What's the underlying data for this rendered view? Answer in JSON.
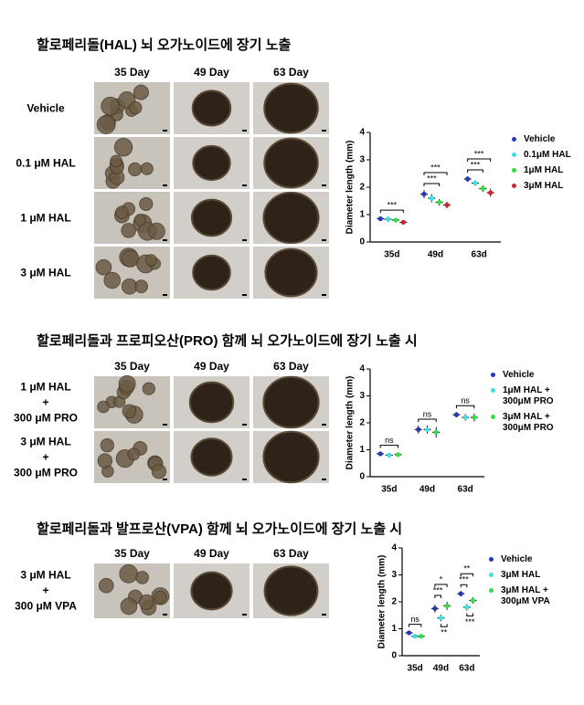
{
  "sections": [
    {
      "title": "할로페리돌(HAL) 뇌 오가노이드에 장기 노출",
      "columns": [
        "35 Day",
        "49 Day",
        "63 Day"
      ],
      "rows": [
        "Vehicle",
        "0.1 μM HAL",
        "1 μM HAL",
        "3 μM HAL"
      ]
    },
    {
      "title": "할로페리돌과 프로피오산(PRO) 함께  뇌 오가노이드에 장기 노출 시",
      "columns": [
        "35 Day",
        "49 Day",
        "63 Day"
      ],
      "rows": [
        "1 μM HAL\n+\n300 μM PRO",
        "3 μM HAL\n+\n300 μM PRO"
      ]
    },
    {
      "title": "할로페리돌과 발프로산(VPA) 함께  뇌 오가노이드에 장기 노출 시",
      "columns": [
        "35 Day",
        "49 Day",
        "63 Day"
      ],
      "rows": [
        "3 μM HAL\n+\n300 μM VPA"
      ]
    }
  ],
  "chart_data": [
    {
      "type": "dot",
      "y_label": "Diameter length (mm)",
      "categories": [
        "35d",
        "49d",
        "63d"
      ],
      "ylim": [
        0,
        4
      ],
      "yticks": [
        0,
        1,
        2,
        3,
        4
      ],
      "series": [
        {
          "name": "Vehicle",
          "color": "#2536b8",
          "values": [
            0.85,
            1.75,
            2.3
          ],
          "errors": [
            0.08,
            0.15,
            0.1
          ]
        },
        {
          "name": "0.1μM HAL",
          "color": "#3fe0e0",
          "values": [
            0.83,
            1.6,
            2.15
          ],
          "errors": [
            0.1,
            0.15,
            0.1
          ]
        },
        {
          "name": "1μM HAL",
          "color": "#33dd44",
          "values": [
            0.8,
            1.45,
            1.95
          ],
          "errors": [
            0.08,
            0.12,
            0.12
          ]
        },
        {
          "name": "3μM HAL",
          "color": "#cc2a2a",
          "values": [
            0.72,
            1.35,
            1.8
          ],
          "errors": [
            0.06,
            0.12,
            0.15
          ]
        }
      ],
      "annotations": [
        {
          "label": "***",
          "category": 0,
          "series": [
            0,
            3
          ],
          "below": false
        },
        {
          "label": "***",
          "category": 1,
          "series": [
            0,
            2
          ],
          "below": false
        },
        {
          "label": "***",
          "category": 1,
          "series": [
            0,
            3
          ],
          "below": false
        },
        {
          "label": "***",
          "category": 2,
          "series": [
            0,
            2
          ],
          "below": false
        },
        {
          "label": "***",
          "category": 2,
          "series": [
            0,
            3
          ],
          "below": false
        }
      ]
    },
    {
      "type": "dot",
      "y_label": "Diameter length (mm)",
      "categories": [
        "35d",
        "49d",
        "63d"
      ],
      "ylim": [
        0,
        4
      ],
      "yticks": [
        0,
        1,
        2,
        3,
        4
      ],
      "series": [
        {
          "name": "Vehicle",
          "color": "#2536b8",
          "values": [
            0.85,
            1.75,
            2.3
          ],
          "errors": [
            0.08,
            0.15,
            0.1
          ]
        },
        {
          "name": "1μM HAL +\n300μM PRO",
          "color": "#3fe0e0",
          "values": [
            0.8,
            1.75,
            2.2
          ],
          "errors": [
            0.08,
            0.15,
            0.12
          ]
        },
        {
          "name": "3μM HAL +\n300μM PRO",
          "color": "#33dd44",
          "values": [
            0.82,
            1.65,
            2.2
          ],
          "errors": [
            0.08,
            0.2,
            0.15
          ]
        }
      ],
      "annotations": [
        {
          "label": "ns",
          "category": 0,
          "series": [
            0,
            2
          ],
          "below": false
        },
        {
          "label": "ns",
          "category": 1,
          "series": [
            0,
            2
          ],
          "below": false
        },
        {
          "label": "ns",
          "category": 2,
          "series": [
            0,
            2
          ],
          "below": false
        }
      ]
    },
    {
      "type": "dot",
      "y_label": "Diameter length (mm)",
      "categories": [
        "35d",
        "49d",
        "63d"
      ],
      "ylim": [
        0,
        4
      ],
      "yticks": [
        0,
        1,
        2,
        3,
        4
      ],
      "series": [
        {
          "name": "Vehicle",
          "color": "#2536b8",
          "values": [
            0.85,
            1.75,
            2.3
          ],
          "errors": [
            0.08,
            0.15,
            0.1
          ]
        },
        {
          "name": "3μM HAL",
          "color": "#3fe0e0",
          "values": [
            0.72,
            1.4,
            1.8
          ],
          "errors": [
            0.06,
            0.12,
            0.12
          ]
        },
        {
          "name": "3μM HAL +\n300μM VPA",
          "color": "#33dd44",
          "values": [
            0.72,
            1.85,
            2.05
          ],
          "errors": [
            0.06,
            0.15,
            0.12
          ]
        }
      ],
      "annotations": [
        {
          "label": "ns",
          "category": 0,
          "series": [
            0,
            2
          ],
          "below": false
        },
        {
          "label": "***",
          "category": 1,
          "series": [
            0,
            1
          ],
          "below": false
        },
        {
          "label": "*",
          "category": 1,
          "series": [
            0,
            2
          ],
          "below": false
        },
        {
          "label": "**",
          "category": 1,
          "series": [
            1,
            2
          ],
          "below": true
        },
        {
          "label": "***",
          "category": 2,
          "series": [
            0,
            1
          ],
          "below": false
        },
        {
          "label": "**",
          "category": 2,
          "series": [
            0,
            2
          ],
          "below": false
        },
        {
          "label": "***",
          "category": 2,
          "series": [
            1,
            2
          ],
          "below": true
        }
      ]
    }
  ]
}
